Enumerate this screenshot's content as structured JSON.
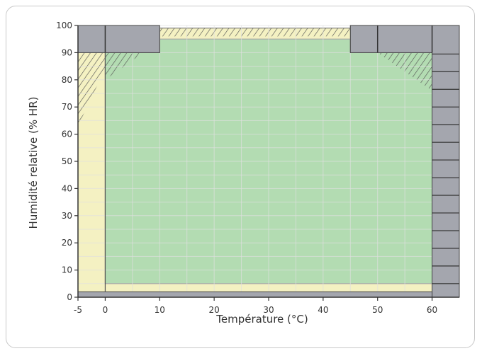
{
  "chart_data": {
    "type": "area",
    "title": "",
    "xlabel": "Température (°C)",
    "ylabel": "Humidité relative (% HR)",
    "xlim": [
      -5,
      65
    ],
    "ylim": [
      0,
      100
    ],
    "x_ticks": [
      -5,
      0,
      10,
      20,
      30,
      40,
      50,
      60
    ],
    "y_ticks": [
      0,
      10,
      20,
      30,
      40,
      50,
      60,
      70,
      80,
      90,
      100
    ],
    "grid": true,
    "colors": {
      "extended_zone": "#f4f1c2",
      "operating_zone": "#b3dcb2",
      "excluded_zone": "#a4a6ae",
      "hatch": "#555555",
      "grid": "#dfdfdf",
      "axis": "#333333"
    },
    "regions": [
      {
        "name": "extended",
        "polygon": [
          [
            -5,
            0
          ],
          [
            60,
            0
          ],
          [
            60,
            90
          ],
          [
            50,
            90
          ],
          [
            50,
            100
          ],
          [
            45,
            100
          ],
          [
            45,
            99
          ],
          [
            10,
            99
          ],
          [
            10,
            90
          ],
          [
            0,
            90
          ],
          [
            0,
            100
          ],
          [
            -5,
            100
          ]
        ]
      },
      {
        "name": "operating",
        "polygon": [
          [
            0,
            5
          ],
          [
            60,
            5
          ],
          [
            60,
            90
          ],
          [
            45,
            90
          ],
          [
            45,
            95
          ],
          [
            10,
            95
          ],
          [
            10,
            90
          ],
          [
            0,
            90
          ]
        ]
      },
      {
        "name": "excluded",
        "rects": [
          {
            "x0": -5,
            "x1": 10,
            "y0": 90,
            "y1": 100
          },
          {
            "x0": 45,
            "x1": 65,
            "y0": 90,
            "y1": 100
          },
          {
            "x0": 60,
            "x1": 65,
            "y0": 0,
            "y1": 100
          },
          {
            "x0": -5,
            "x1": 60,
            "y0": 0,
            "y1": 2
          }
        ]
      }
    ],
    "hatched_zones": [
      {
        "polygon": [
          [
            -5,
            63
          ],
          [
            -5,
            90
          ],
          [
            0,
            90
          ],
          [
            0,
            84
          ]
        ]
      },
      {
        "polygon": [
          [
            0,
            80
          ],
          [
            0,
            90
          ],
          [
            7,
            90
          ]
        ]
      },
      {
        "polygon": [
          [
            10,
            96
          ],
          [
            10,
            99
          ],
          [
            45,
            99
          ],
          [
            45,
            96
          ]
        ]
      },
      {
        "polygon": [
          [
            50,
            90
          ],
          [
            60,
            90
          ],
          [
            60,
            76
          ]
        ]
      }
    ]
  }
}
